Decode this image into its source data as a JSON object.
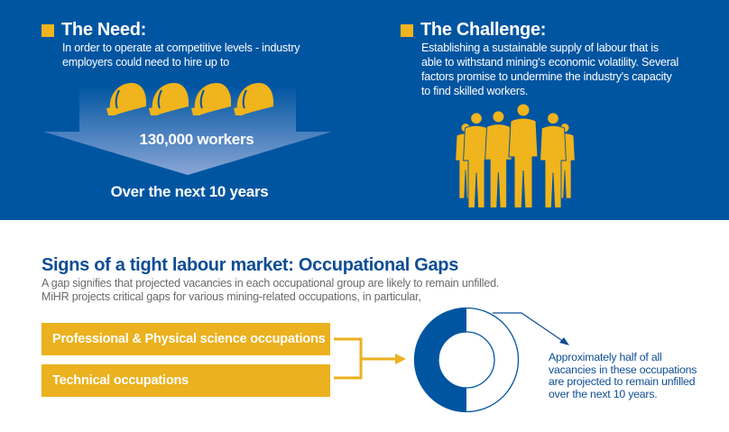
{
  "need": {
    "title": "The Need:",
    "text_lines": [
      "In order to operate at competitive levels - industry",
      "employers could need to hire up to"
    ],
    "figure": "130,000 workers",
    "period": "Over the next 10 years",
    "icon": "hard-hat-icon"
  },
  "challenge": {
    "title": "The Challenge:",
    "text_lines": [
      "Establishing a sustainable supply of labour that is",
      "able to withstand mining's economic volatility. Several",
      "factors promise to undermine the industry's capacity",
      "to find skilled workers."
    ],
    "icon": "workers-group-icon"
  },
  "gaps": {
    "title": "Signs of a tight labour market: Occupational Gaps",
    "subtitle_lines": [
      "A gap signifies that projected vacancies in each occupational group are likely to remain unfilled.",
      "MiHR projects critical gaps for various mining-related occupations, in particular,"
    ],
    "occupations": [
      "Professional & Physical science occupations",
      "Technical occupations"
    ],
    "donut_unfilled_fraction": 0.5,
    "note_lines": [
      "Approximately half of all",
      "vacancies in these occupations",
      "are projected to remain unfilled",
      "over the next 10 years."
    ]
  },
  "colors": {
    "blue": "#0055a1",
    "yellow": "#f0b41c",
    "dark_blue_text": "#0e4d95"
  }
}
